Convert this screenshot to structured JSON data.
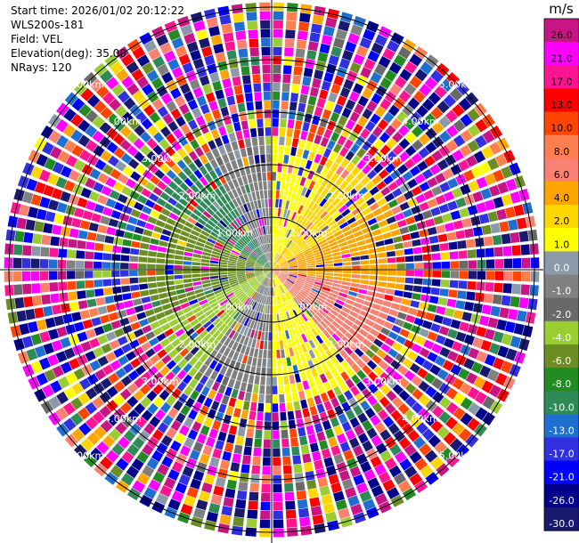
{
  "header": {
    "start_time": "Start time: 2026/01/02 20:12:22",
    "instrument": "WLS200s-181",
    "field": "Field: VEL",
    "elevation": "Elevation(deg): 35.00",
    "nrays": "NRays: 120"
  },
  "chart_data": {
    "type": "heatmap",
    "subtype": "polar-ppi",
    "field": "VEL",
    "elevation_deg": 35.0,
    "n_rays": 120,
    "max_range_km": 5.1,
    "range_rings_km": [
      1.0,
      2.0,
      3.0,
      4.0,
      5.0
    ],
    "range_ring_labels": [
      "1.00km",
      "2.00km",
      "3.00km",
      "4.00km",
      "5.00km"
    ],
    "colorbar": {
      "unit": "m/s",
      "boundaries": [
        -30.0,
        -26.0,
        -21.0,
        -17.0,
        -13.0,
        -10.0,
        -8.0,
        -6.0,
        -4.0,
        -2.0,
        -1.0,
        0.0,
        1.0,
        2.0,
        4.0,
        6.0,
        8.0,
        10.0,
        13.0,
        17.0,
        21.0,
        26.0,
        30.0
      ],
      "tick_labels": [
        "-30.0",
        "-26.0",
        "-21.0",
        "-17.0",
        "-13.0",
        "-10.0",
        "-8.0",
        "-6.0",
        "-4.0",
        "-2.0",
        "-1.0",
        "0.0",
        "1.0",
        "2.0",
        "4.0",
        "6.0",
        "8.0",
        "10.0",
        "13.0",
        "17.0",
        "21.0",
        "26.0"
      ],
      "colors": [
        "#191970",
        "#00008b",
        "#0000ff",
        "#3030e0",
        "#1e6fd0",
        "#2e8b57",
        "#228b22",
        "#6b8e23",
        "#9acd32",
        "#696969",
        "#808080",
        "#8a9aa8",
        "#ffff00",
        "#ffd700",
        "#ffa500",
        "#fa8072",
        "#ff7f50",
        "#ff4500",
        "#ff0000",
        "#ff1493",
        "#ff00ff",
        "#c71585"
      ]
    },
    "coherent_region_km": 2.4,
    "wind_pattern": [
      {
        "from_deg": 0,
        "to_deg": 30,
        "value": 1.5
      },
      {
        "from_deg": 30,
        "to_deg": 60,
        "value": 3.0
      },
      {
        "from_deg": 60,
        "to_deg": 100,
        "value": 5.0
      },
      {
        "from_deg": 100,
        "to_deg": 140,
        "value": 7.0
      },
      {
        "from_deg": 140,
        "to_deg": 180,
        "value": 1.5
      },
      {
        "from_deg": 180,
        "to_deg": 215,
        "value": -0.5
      },
      {
        "from_deg": 215,
        "to_deg": 245,
        "value": -3.0
      },
      {
        "from_deg": 245,
        "to_deg": 300,
        "value": -5.0
      },
      {
        "from_deg": 300,
        "to_deg": 330,
        "value": -9.0
      },
      {
        "from_deg": 330,
        "to_deg": 360,
        "value": -0.5
      }
    ]
  }
}
